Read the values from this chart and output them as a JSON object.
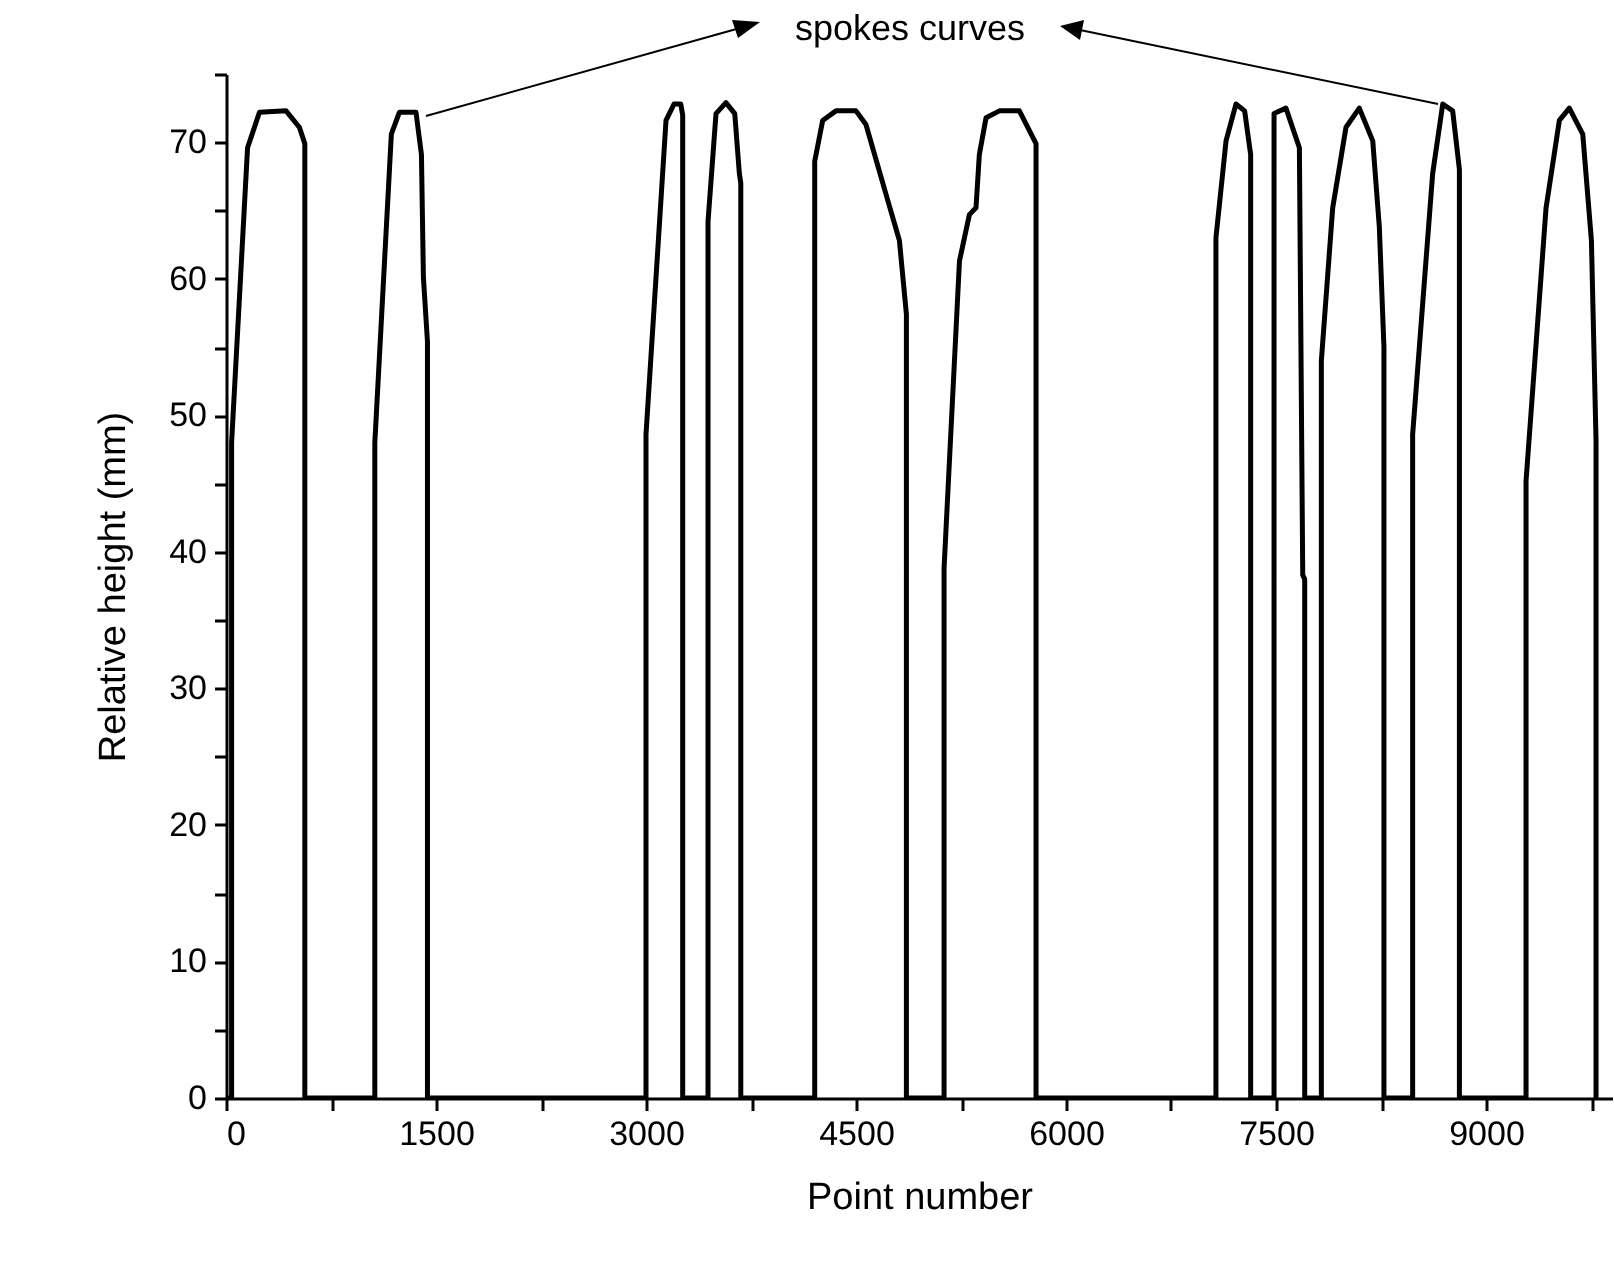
{
  "chart_data": {
    "type": "line",
    "xlabel": "Point number",
    "ylabel": "Relative height (mm)",
    "annotations": [
      "spokes curves"
    ],
    "xlim": [
      0,
      9900
    ],
    "ylim": [
      0,
      75
    ],
    "xticks": [
      0,
      {
        "value": 750,
        "label": null
      },
      1500,
      {
        "value": 2250,
        "label": null
      },
      3000,
      {
        "value": 3750,
        "label": null
      },
      4500,
      {
        "value": 5250,
        "label": null
      },
      6000,
      {
        "value": 6750,
        "label": null
      },
      7500,
      {
        "value": 8250,
        "label": null
      },
      9000,
      {
        "value": 9750,
        "label": null
      }
    ],
    "yticks": [
      0,
      {
        "value": 5,
        "label": null
      },
      10,
      {
        "value": 15,
        "label": null
      },
      20,
      {
        "value": 25,
        "label": null
      },
      30,
      {
        "value": 35,
        "label": null
      },
      40,
      {
        "value": 45,
        "label": null
      },
      50,
      {
        "value": 55,
        "label": null
      },
      60,
      {
        "value": 65,
        "label": null
      },
      70,
      {
        "value": 75,
        "label": null
      }
    ],
    "grid": false,
    "marker": "none",
    "line_style": "solid",
    "series": [
      {
        "color": "#000000",
        "x": [
          0,
          40,
          40,
          154,
          239,
          429,
          524,
          563,
          563,
          1063,
          1063,
          1181,
          1239,
          1357,
          1396,
          1410,
          1439,
          1439,
          3000,
          3000,
          3143,
          3200,
          3248,
          3262,
          3262,
          3443,
          3443,
          3500,
          3571,
          3634,
          3667,
          3677,
          3677,
          4205,
          4205,
          4262,
          4357,
          4500,
          4571,
          4714,
          4810,
          4860,
          4860,
          5129,
          5129,
          5239,
          5310,
          5357,
          5381,
          5429,
          5524,
          5667,
          5786,
          5786,
          7071,
          7071,
          7143,
          7214,
          7276,
          7319,
          7319,
          7486,
          7486,
          7571,
          7667,
          7691,
          7705,
          7705,
          7824,
          7824,
          7905,
          8000,
          8095,
          8191,
          8238,
          8271,
          8271,
          8476,
          8476,
          8619,
          8691,
          8762,
          8800,
          8810,
          8810,
          9286,
          9286,
          9429,
          9524,
          9595,
          9691,
          9753,
          9786,
          9786
        ],
        "values": [
          0,
          0,
          48,
          69.6,
          72.2,
          72.3,
          71.1,
          69.9,
          0,
          0,
          48,
          70.6,
          72.2,
          72.2,
          69.1,
          60.1,
          55.4,
          0,
          0,
          48.6,
          71.6,
          72.8,
          72.8,
          72,
          0,
          0,
          64.2,
          72.1,
          72.9,
          72.1,
          67.7,
          67,
          0,
          0,
          68.6,
          71.6,
          72.3,
          72.3,
          71.3,
          66.2,
          62.8,
          57.4,
          0,
          0,
          38.8,
          61.3,
          64.7,
          65.2,
          69.1,
          71.8,
          72.3,
          72.3,
          69.9,
          0,
          0,
          63,
          70.1,
          72.8,
          72.3,
          69.1,
          0,
          0,
          72.1,
          72.5,
          69.6,
          38.3,
          38,
          0,
          0,
          54,
          65.2,
          71.1,
          72.5,
          70.1,
          63.8,
          55,
          0,
          0,
          48.6,
          67.7,
          72.8,
          72.3,
          68.9,
          68,
          0,
          0,
          45.2,
          65.2,
          71.6,
          72.5,
          70.6,
          62.8,
          48.1,
          0
        ]
      }
    ]
  }
}
